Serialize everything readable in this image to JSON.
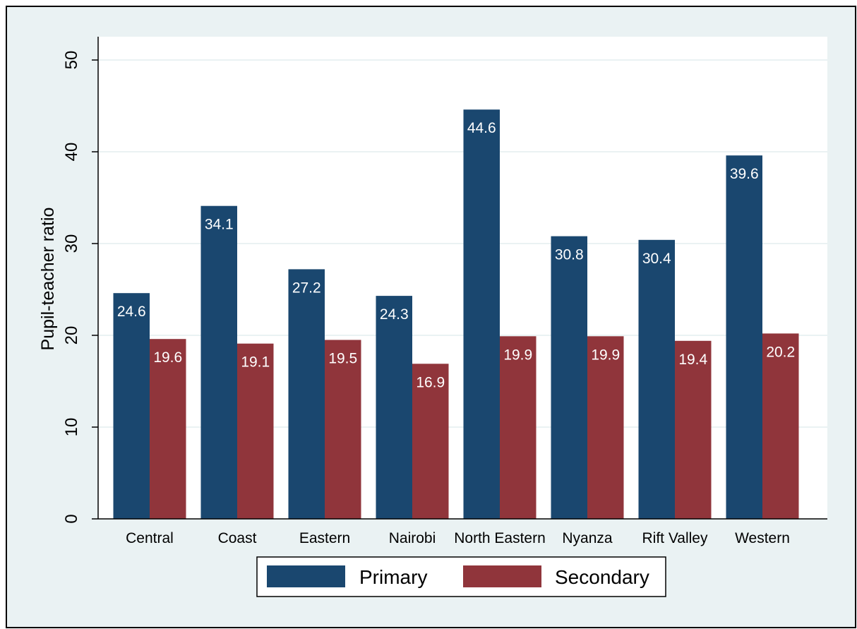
{
  "chart_data": {
    "type": "bar",
    "title": "",
    "xlabel": "",
    "ylabel": "Pupil-teacher ratio",
    "ylim": [
      0,
      50
    ],
    "yticks": [
      0,
      10,
      20,
      30,
      40,
      50
    ],
    "grid": true,
    "legend_position": "bottom",
    "categories": [
      "Central",
      "Coast",
      "Eastern",
      "Nairobi",
      "North Eastern",
      "Nyanza",
      "Rift Valley",
      "Western"
    ],
    "series": [
      {
        "name": "Primary",
        "color": "#1a476f",
        "values": [
          24.6,
          34.1,
          27.2,
          24.3,
          44.6,
          30.8,
          30.4,
          39.6
        ],
        "labels": [
          "24.6",
          "34.1",
          "27.2",
          "24.3",
          "44.6",
          "30.8",
          "30.4",
          "39.6"
        ]
      },
      {
        "name": "Secondary",
        "color": "#90353b",
        "values": [
          19.6,
          19.1,
          19.5,
          16.9,
          19.9,
          19.9,
          19.4,
          20.2
        ],
        "labels": [
          "19.6",
          "19.1",
          "19.5",
          "16.9",
          "19.9",
          "19.9",
          "19.4",
          "20.2"
        ]
      }
    ],
    "colors": {
      "outer_background": "#eaf2f3",
      "plot_background": "#ffffff",
      "gridline": "#eaf2f3",
      "label_text": "#ffffff",
      "axis_text": "#000000"
    }
  }
}
